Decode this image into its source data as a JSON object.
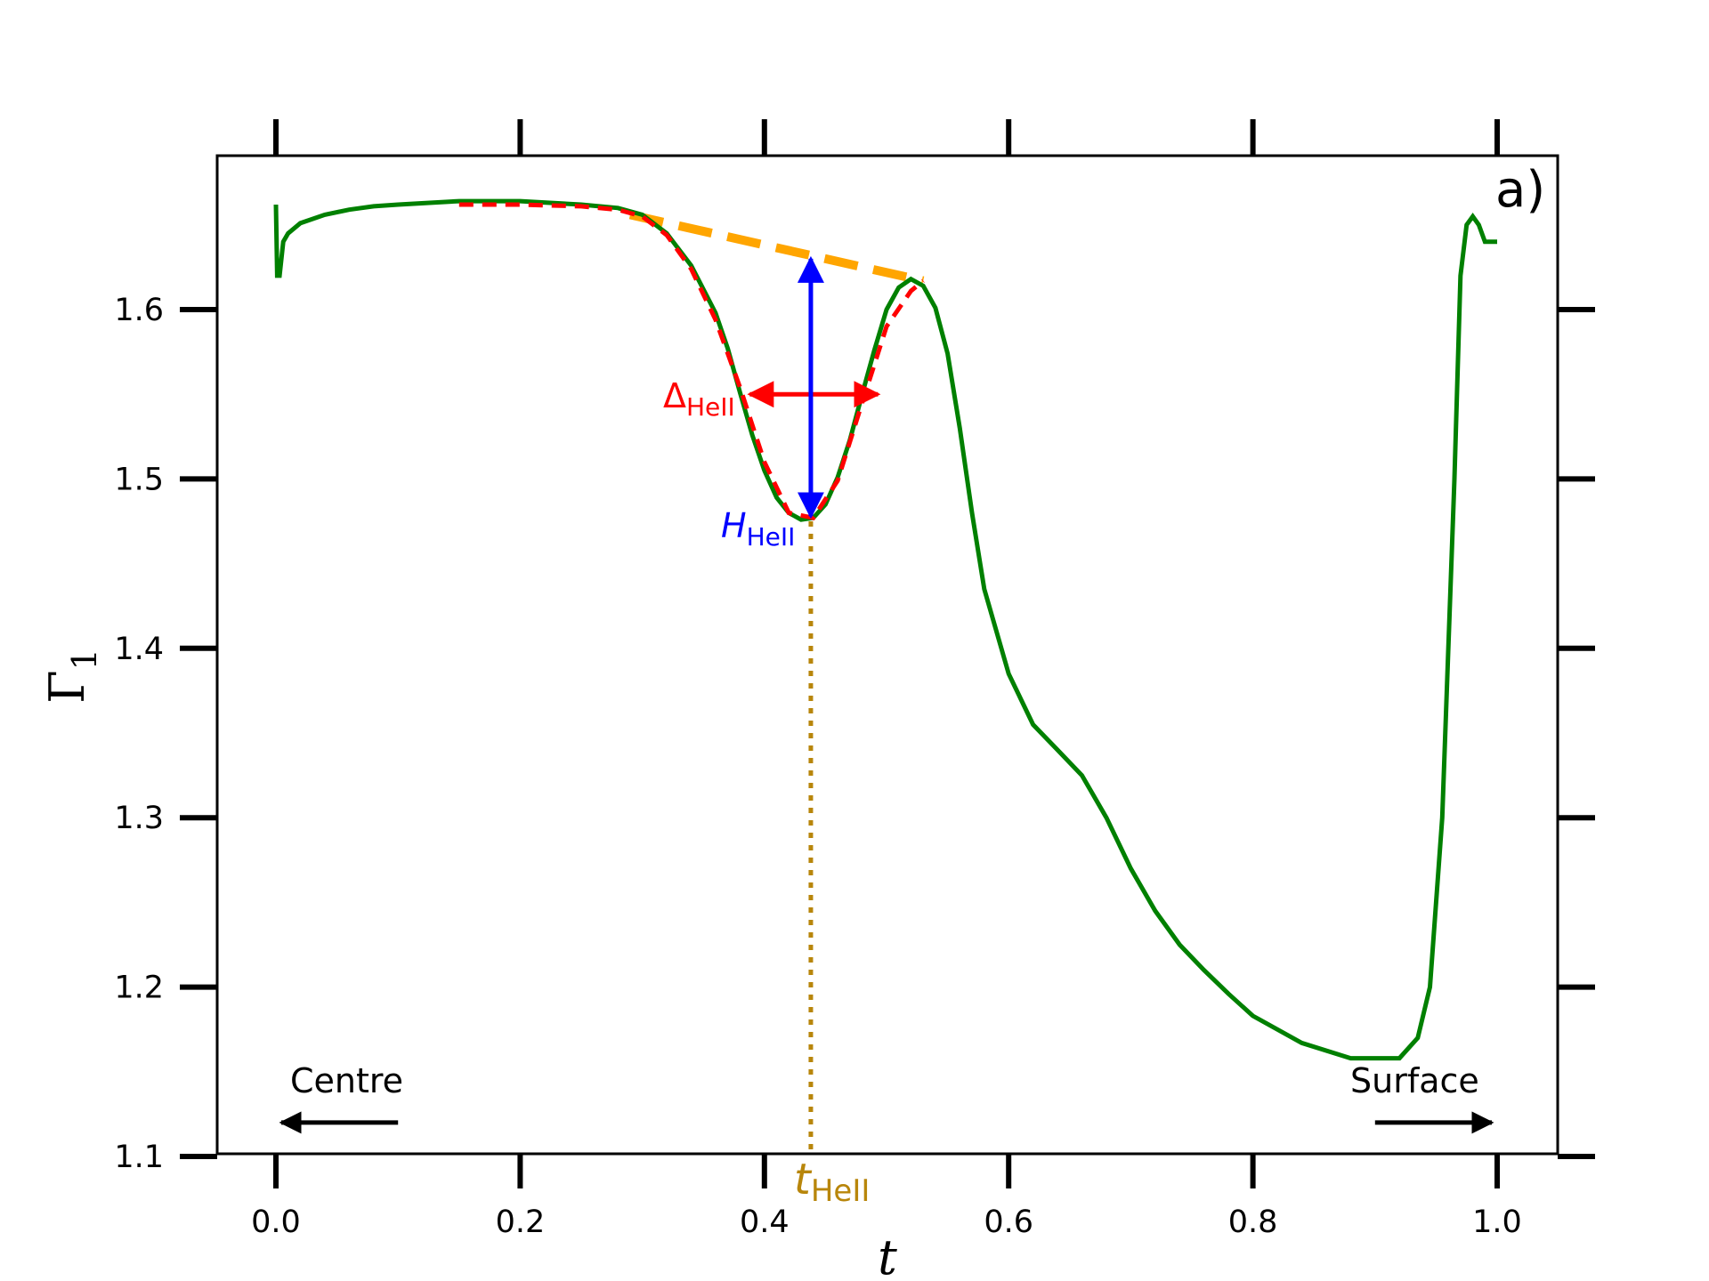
{
  "chart_data": {
    "type": "line",
    "xlabel": "t",
    "ylabel": "Γ",
    "ylabel_sub": "1",
    "xlim": [
      -0.05,
      1.05
    ],
    "ylim": [
      1.1,
      1.69
    ],
    "x_ticks": [
      0.0,
      0.2,
      0.4,
      0.6,
      0.8,
      1.0
    ],
    "x_tick_labels": [
      "0.0",
      "0.2",
      "0.4",
      "0.6",
      "0.8",
      "1.0"
    ],
    "y_ticks": [
      1.1,
      1.2,
      1.3,
      1.4,
      1.5,
      1.6
    ],
    "y_tick_labels": [
      "1.1",
      "1.2",
      "1.3",
      "1.4",
      "1.5",
      "1.6"
    ],
    "grid": false,
    "panel_label": "a)",
    "colors": {
      "profile": "#008000",
      "fit": "#ff0000",
      "baseline": "#ffa500",
      "height": "#0000ff",
      "position": "#b8860b",
      "axes": "#000000"
    },
    "series": [
      {
        "role": "profile",
        "x": [
          0.0,
          0.001,
          0.003,
          0.006,
          0.01,
          0.02,
          0.04,
          0.06,
          0.08,
          0.1,
          0.15,
          0.2,
          0.25,
          0.28,
          0.3,
          0.32,
          0.34,
          0.36,
          0.37,
          0.38,
          0.39,
          0.4,
          0.41,
          0.42,
          0.43,
          0.44,
          0.45,
          0.46,
          0.47,
          0.48,
          0.49,
          0.5,
          0.51,
          0.52,
          0.53,
          0.54,
          0.55,
          0.56,
          0.57,
          0.58,
          0.6,
          0.62,
          0.64,
          0.66,
          0.68,
          0.7,
          0.72,
          0.74,
          0.76,
          0.78,
          0.8,
          0.84,
          0.88,
          0.92,
          0.935,
          0.945,
          0.955,
          0.965,
          0.97,
          0.975,
          0.98,
          0.985,
          0.99,
          0.995,
          1.0
        ],
        "y": [
          1.662,
          1.62,
          1.62,
          1.64,
          1.645,
          1.651,
          1.656,
          1.659,
          1.661,
          1.662,
          1.664,
          1.664,
          1.662,
          1.66,
          1.656,
          1.645,
          1.626,
          1.598,
          1.577,
          1.551,
          1.526,
          1.505,
          1.489,
          1.48,
          1.476,
          1.477,
          1.485,
          1.501,
          1.523,
          1.55,
          1.576,
          1.6,
          1.613,
          1.618,
          1.614,
          1.601,
          1.574,
          1.53,
          1.48,
          1.435,
          1.385,
          1.355,
          1.34,
          1.325,
          1.3,
          1.27,
          1.245,
          1.225,
          1.21,
          1.196,
          1.183,
          1.167,
          1.158,
          1.158,
          1.17,
          1.2,
          1.3,
          1.5,
          1.62,
          1.65,
          1.655,
          1.65,
          1.64,
          1.64,
          1.64
        ]
      },
      {
        "role": "fit",
        "x": [
          0.15,
          0.2,
          0.25,
          0.28,
          0.3,
          0.32,
          0.34,
          0.36,
          0.38,
          0.4,
          0.42,
          0.44,
          0.46,
          0.48,
          0.5,
          0.52,
          0.53
        ],
        "y": [
          1.662,
          1.662,
          1.661,
          1.659,
          1.655,
          1.644,
          1.624,
          1.594,
          1.554,
          1.51,
          1.48,
          1.477,
          1.499,
          1.545,
          1.59,
          1.611,
          1.617
        ]
      },
      {
        "role": "baseline",
        "x": [
          0.29,
          0.53
        ],
        "y": [
          1.656,
          1.617
        ]
      }
    ],
    "annotations": {
      "delta": {
        "label": "Δ",
        "sub": "HeII",
        "x_left": 0.388,
        "x_right": 0.493,
        "y": 1.55
      },
      "height": {
        "label": "H",
        "sub": "HeII",
        "x": 0.438,
        "y_top": 1.63,
        "y_bottom": 1.478
      },
      "position": {
        "label": "t",
        "sub": "HeII",
        "x": 0.438,
        "y_top": 1.475,
        "y_bottom": 1.1
      },
      "centre": {
        "label": "Centre",
        "x_from": 0.1,
        "x_to": 0.0,
        "y": 1.12
      },
      "surface": {
        "label": "Surface",
        "x_from": 0.9,
        "x_to": 1.0,
        "y": 1.12
      }
    }
  }
}
